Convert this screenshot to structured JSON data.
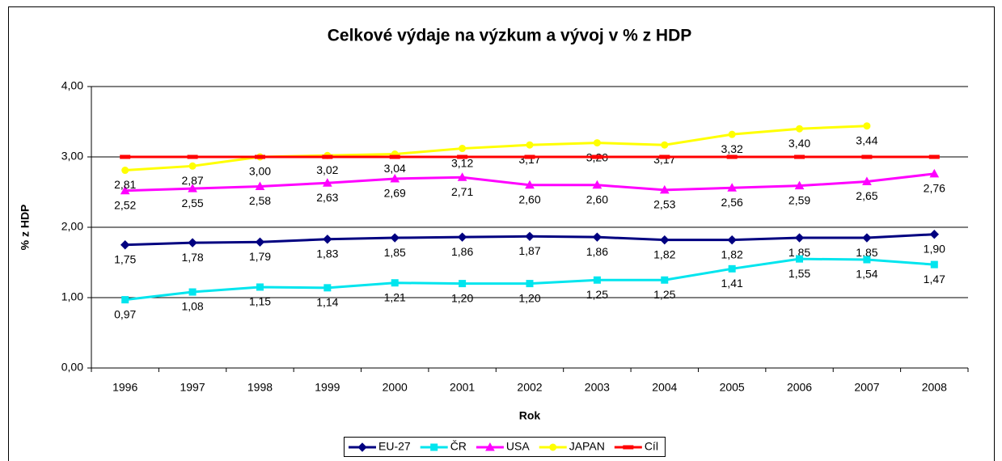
{
  "chart_data": {
    "type": "line",
    "title": "Celkové výdaje na výzkum a vývoj v % z HDP",
    "x_label": "Rok",
    "y_label": "% z HDP",
    "categories": [
      "1996",
      "1997",
      "1998",
      "1999",
      "2000",
      "2001",
      "2002",
      "2003",
      "2004",
      "2005",
      "2006",
      "2007",
      "2008"
    ],
    "ylim": [
      0,
      4
    ],
    "yticks": [
      {
        "value": 0,
        "label": "0,00"
      },
      {
        "value": 1,
        "label": "1,00"
      },
      {
        "value": 2,
        "label": "2,00"
      },
      {
        "value": 3,
        "label": "3,00"
      },
      {
        "value": 4,
        "label": "4,00"
      }
    ],
    "grid": true,
    "legend": "bottom",
    "series": [
      {
        "name": "EU-27",
        "color": "#000080",
        "marker": "diamond",
        "values": [
          1.75,
          1.78,
          1.79,
          1.83,
          1.85,
          1.86,
          1.87,
          1.86,
          1.82,
          1.82,
          1.85,
          1.85,
          1.9
        ],
        "value_labels": [
          "1,75",
          "1,78",
          "1,79",
          "1,83",
          "1,85",
          "1,86",
          "1,87",
          "1,86",
          "1,82",
          "1,82",
          "1,85",
          "1,85",
          "1,90"
        ]
      },
      {
        "name": "ČR",
        "color": "#00e5ee",
        "marker": "square",
        "values": [
          0.97,
          1.08,
          1.15,
          1.14,
          1.21,
          1.2,
          1.2,
          1.25,
          1.25,
          1.41,
          1.55,
          1.54,
          1.47
        ],
        "value_labels": [
          "0,97",
          "1,08",
          "1,15",
          "1,14",
          "1,21",
          "1,20",
          "1,20",
          "1,25",
          "1,25",
          "1,41",
          "1,55",
          "1,54",
          "1,47"
        ]
      },
      {
        "name": "USA",
        "color": "#ff00ff",
        "marker": "triangle",
        "values": [
          2.52,
          2.55,
          2.58,
          2.63,
          2.69,
          2.71,
          2.6,
          2.6,
          2.53,
          2.56,
          2.59,
          2.65,
          2.76
        ],
        "value_labels": [
          "2,52",
          "2,55",
          "2,58",
          "2,63",
          "2,69",
          "2,71",
          "2,60",
          "2,60",
          "2,53",
          "2,56",
          "2,59",
          "2,65",
          "2,76"
        ]
      },
      {
        "name": "JAPAN",
        "color": "#ffff00",
        "marker": "circle",
        "values": [
          2.81,
          2.87,
          3.0,
          3.02,
          3.04,
          3.12,
          3.17,
          3.2,
          3.17,
          3.32,
          3.4,
          3.44,
          null
        ],
        "value_labels": [
          "2,81",
          "2,87",
          "3,00",
          "3,02",
          "3,04",
          "3,12",
          "3,17",
          "3,20",
          "3,17",
          "3,32",
          "3,40",
          "3,44",
          null
        ]
      },
      {
        "name": "Cíl",
        "color": "#ff0000",
        "marker": "dash",
        "values": [
          3,
          3,
          3,
          3,
          3,
          3,
          3,
          3,
          3,
          3,
          3,
          3,
          3
        ]
      }
    ]
  }
}
